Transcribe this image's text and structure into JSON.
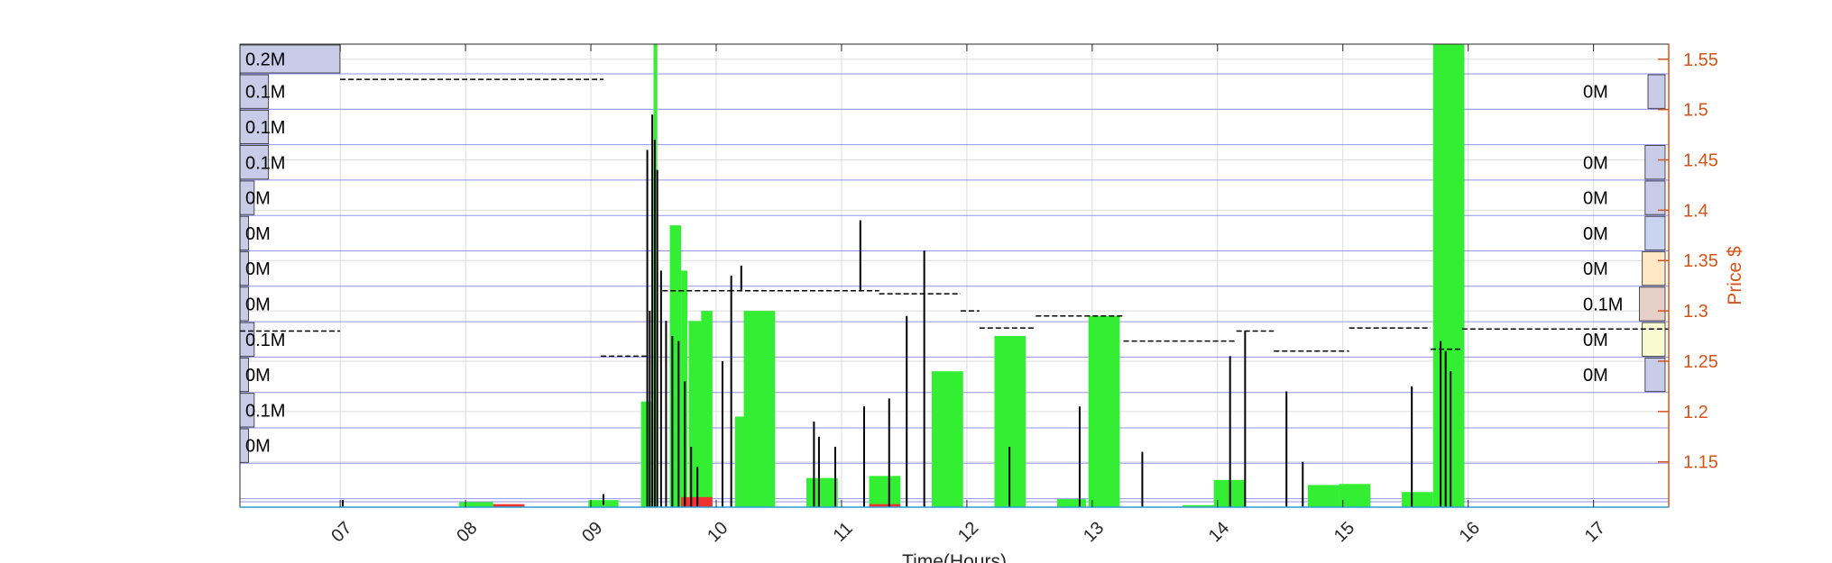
{
  "chart_data": {
    "type": "bar",
    "xlabel": "Time(Hours)",
    "ylabel_right": "Price $",
    "x_range_hours": [
      6.2,
      17.6
    ],
    "x_ticks": [
      "07",
      "08",
      "09",
      "10",
      "11",
      "12",
      "13",
      "14",
      "15",
      "16",
      "17"
    ],
    "y_right_range": [
      1.105,
      1.565
    ],
    "y_right_ticks": [
      "1.15",
      "1.2",
      "1.25",
      "1.3",
      "1.35",
      "1.4",
      "1.45",
      "1.5",
      "1.55"
    ],
    "grid": true,
    "colors": {
      "buy_volume": "#33ee33",
      "sell_volume": "#ee3333",
      "price": "#000000",
      "right_axis": "#d95319",
      "price_band_lines": "#7777ee",
      "grid": "#dddddd"
    },
    "price_bands": [
      {
        "left_label": "0.2M",
        "right_label": ""
      },
      {
        "left_label": "0.1M",
        "right_label": "0M"
      },
      {
        "left_label": "0.1M",
        "right_label": ""
      },
      {
        "left_label": "0.1M",
        "right_label": "0M"
      },
      {
        "left_label": "0M",
        "right_label": "0M"
      },
      {
        "left_label": "0M",
        "right_label": "0M"
      },
      {
        "left_label": "0M",
        "right_label": "0M"
      },
      {
        "left_label": "0M",
        "right_label": "0.1M"
      },
      {
        "left_label": "0.1M",
        "right_label": "0M"
      },
      {
        "left_label": "0M",
        "right_label": "0M"
      },
      {
        "left_label": "0.1M",
        "right_label": ""
      },
      {
        "left_label": "0M",
        "right_label": ""
      }
    ],
    "profile_left_fraction": [
      0.07,
      0.02,
      0.02,
      0.02,
      0.01,
      0.006,
      0.006,
      0.006,
      0.01,
      0.006,
      0.01,
      0.006
    ],
    "profile_right_fraction": [
      0,
      0.012,
      0,
      0.014,
      0.014,
      0.014,
      0.016,
      0.018,
      0.016,
      0.014,
      0,
      0
    ],
    "profile_right_colors": [
      "",
      "#c8cce8",
      "",
      "#c8cce8",
      "#c8cce8",
      "#c8d4f0",
      "#fde7c4",
      "#e5cfc6",
      "#fafad0",
      "#c8cce8",
      "",
      ""
    ],
    "buy_bars": [
      {
        "x0": 7.95,
        "x1": 8.22,
        "value": 1.11
      },
      {
        "x0": 8.98,
        "x1": 9.22,
        "value": 1.112
      },
      {
        "x0": 9.4,
        "x1": 9.48,
        "value": 1.21
      },
      {
        "x0": 9.5,
        "x1": 9.53,
        "value": 1.565
      },
      {
        "x0": 9.63,
        "x1": 9.72,
        "value": 1.385
      },
      {
        "x0": 9.72,
        "x1": 9.77,
        "value": 1.34
      },
      {
        "x0": 9.78,
        "x1": 9.95,
        "value": 1.29
      },
      {
        "x0": 9.88,
        "x1": 9.97,
        "value": 1.3
      },
      {
        "x0": 10.15,
        "x1": 10.25,
        "value": 1.195
      },
      {
        "x0": 10.22,
        "x1": 10.47,
        "value": 1.3
      },
      {
        "x0": 10.72,
        "x1": 10.97,
        "value": 1.134
      },
      {
        "x0": 11.22,
        "x1": 11.47,
        "value": 1.136
      },
      {
        "x0": 11.72,
        "x1": 11.97,
        "value": 1.24
      },
      {
        "x0": 12.22,
        "x1": 12.47,
        "value": 1.275
      },
      {
        "x0": 12.72,
        "x1": 12.95,
        "value": 1.113
      },
      {
        "x0": 12.97,
        "x1": 13.22,
        "value": 1.295
      },
      {
        "x0": 13.72,
        "x1": 13.97,
        "value": 1.107
      },
      {
        "x0": 13.97,
        "x1": 14.22,
        "value": 1.132
      },
      {
        "x0": 14.72,
        "x1": 14.97,
        "value": 1.127
      },
      {
        "x0": 14.97,
        "x1": 15.22,
        "value": 1.128
      },
      {
        "x0": 15.47,
        "x1": 15.72,
        "value": 1.12
      },
      {
        "x0": 15.72,
        "x1": 15.97,
        "value": 1.565
      }
    ],
    "sell_bars": [
      {
        "x0": 8.22,
        "x1": 8.47,
        "value": 1.108
      },
      {
        "x0": 9.72,
        "x1": 9.97,
        "value": 1.115
      },
      {
        "x0": 11.22,
        "x1": 11.47,
        "value": 1.108
      }
    ],
    "price_levels": [
      {
        "x0": 7.0,
        "x1": 9.1,
        "value": 1.53
      },
      {
        "x0": 6.2,
        "x1": 7.0,
        "value": 1.28
      },
      {
        "x0": 9.08,
        "x1": 9.45,
        "value": 1.255
      },
      {
        "x0": 9.57,
        "x1": 10.1,
        "value": 1.32
      },
      {
        "x0": 10.1,
        "x1": 11.3,
        "value": 1.32
      },
      {
        "x0": 11.3,
        "x1": 11.95,
        "value": 1.317
      },
      {
        "x0": 11.95,
        "x1": 12.1,
        "value": 1.3
      },
      {
        "x0": 12.1,
        "x1": 12.55,
        "value": 1.283
      },
      {
        "x0": 12.55,
        "x1": 13.25,
        "value": 1.295
      },
      {
        "x0": 13.25,
        "x1": 14.15,
        "value": 1.27
      },
      {
        "x0": 14.15,
        "x1": 14.45,
        "value": 1.28
      },
      {
        "x0": 14.45,
        "x1": 15.05,
        "value": 1.26
      },
      {
        "x0": 15.05,
        "x1": 15.7,
        "value": 1.283
      },
      {
        "x0": 15.7,
        "x1": 15.95,
        "value": 1.262
      },
      {
        "x0": 15.95,
        "x1": 17.6,
        "value": 1.282
      }
    ],
    "price_spikes": [
      {
        "x": 7.02,
        "lo": 1.105,
        "hi": 1.112
      },
      {
        "x": 9.1,
        "lo": 1.107,
        "hi": 1.118
      },
      {
        "x": 9.45,
        "lo": 1.105,
        "hi": 1.46
      },
      {
        "x": 9.47,
        "lo": 1.105,
        "hi": 1.3
      },
      {
        "x": 9.49,
        "lo": 1.105,
        "hi": 1.495
      },
      {
        "x": 9.51,
        "lo": 1.105,
        "hi": 1.47
      },
      {
        "x": 9.53,
        "lo": 1.105,
        "hi": 1.44
      },
      {
        "x": 9.56,
        "lo": 1.105,
        "hi": 1.34
      },
      {
        "x": 9.6,
        "lo": 1.105,
        "hi": 1.29
      },
      {
        "x": 9.65,
        "lo": 1.105,
        "hi": 1.275
      },
      {
        "x": 9.7,
        "lo": 1.105,
        "hi": 1.27
      },
      {
        "x": 9.75,
        "lo": 1.105,
        "hi": 1.23
      },
      {
        "x": 9.8,
        "lo": 1.105,
        "hi": 1.165
      },
      {
        "x": 9.85,
        "lo": 1.105,
        "hi": 1.145
      },
      {
        "x": 10.05,
        "lo": 1.105,
        "hi": 1.25
      },
      {
        "x": 10.12,
        "lo": 1.105,
        "hi": 1.335
      },
      {
        "x": 10.78,
        "lo": 1.105,
        "hi": 1.19
      },
      {
        "x": 10.82,
        "lo": 1.105,
        "hi": 1.175
      },
      {
        "x": 10.95,
        "lo": 1.105,
        "hi": 1.165
      },
      {
        "x": 11.18,
        "lo": 1.105,
        "hi": 1.205
      },
      {
        "x": 11.38,
        "lo": 1.105,
        "hi": 1.213
      },
      {
        "x": 11.52,
        "lo": 1.105,
        "hi": 1.295
      },
      {
        "x": 11.66,
        "lo": 1.105,
        "hi": 1.36
      },
      {
        "x": 12.34,
        "lo": 1.105,
        "hi": 1.165
      },
      {
        "x": 12.9,
        "lo": 1.105,
        "hi": 1.205
      },
      {
        "x": 13.4,
        "lo": 1.105,
        "hi": 1.16
      },
      {
        "x": 14.1,
        "lo": 1.105,
        "hi": 1.255
      },
      {
        "x": 14.22,
        "lo": 1.105,
        "hi": 1.28
      },
      {
        "x": 14.55,
        "lo": 1.105,
        "hi": 1.22
      },
      {
        "x": 14.68,
        "lo": 1.105,
        "hi": 1.15
      },
      {
        "x": 15.55,
        "lo": 1.105,
        "hi": 1.225
      },
      {
        "x": 15.78,
        "lo": 1.105,
        "hi": 1.27
      },
      {
        "x": 15.82,
        "lo": 1.105,
        "hi": 1.26
      },
      {
        "x": 15.86,
        "lo": 1.105,
        "hi": 1.24
      },
      {
        "x": 11.15,
        "lo": 1.32,
        "hi": 1.39
      },
      {
        "x": 10.2,
        "lo": 1.32,
        "hi": 1.345
      }
    ]
  }
}
